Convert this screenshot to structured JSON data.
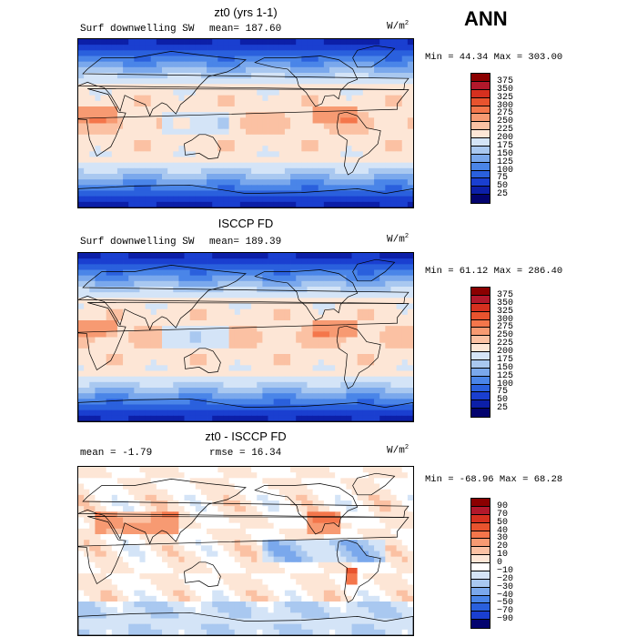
{
  "season": "ANN",
  "chart_data": [
    {
      "type": "heatmap",
      "title": "zt0 (yrs 1-1)",
      "left_label": "Surf downwelling SW",
      "stat_label": "mean= 187.60",
      "unit": "W/m",
      "unit_sup": "2",
      "minmax": "Min =  44.34 Max = 303.00",
      "levels": [
        "375",
        "350",
        "325",
        "300",
        "275",
        "250",
        "225",
        "200",
        "175",
        "150",
        "125",
        "100",
        "75",
        "50",
        "25"
      ],
      "colors": [
        "#8b0000",
        "#b2182b",
        "#d6301f",
        "#e8532e",
        "#f4764b",
        "#f79a72",
        "#fbc1a3",
        "#fde6d6",
        "#d4e4f7",
        "#a9c8f0",
        "#7aa8ec",
        "#4a85e8",
        "#2a60dd",
        "#1a3fd0",
        "#0c1fa8",
        "#03036e"
      ]
    },
    {
      "type": "heatmap",
      "title": "ISCCP FD",
      "left_label": "Surf downwelling SW",
      "stat_label": "mean= 189.39",
      "unit": "W/m",
      "unit_sup": "2",
      "minmax": "Min =  61.12 Max = 286.40",
      "levels": [
        "375",
        "350",
        "325",
        "300",
        "275",
        "250",
        "225",
        "200",
        "175",
        "150",
        "125",
        "100",
        "75",
        "50",
        "25"
      ],
      "colors": [
        "#8b0000",
        "#b2182b",
        "#d6301f",
        "#e8532e",
        "#f4764b",
        "#f79a72",
        "#fbc1a3",
        "#fde6d6",
        "#d4e4f7",
        "#a9c8f0",
        "#7aa8ec",
        "#4a85e8",
        "#2a60dd",
        "#1a3fd0",
        "#0c1fa8",
        "#03036e"
      ]
    },
    {
      "type": "heatmap",
      "title": "zt0 - ISCCP FD",
      "left_label": "mean =  -1.79",
      "stat_label": "rmse =  16.34",
      "unit": "W/m",
      "unit_sup": "2",
      "minmax": "Min = -68.96 Max =  68.28",
      "levels": [
        "90",
        "70",
        "50",
        "40",
        "30",
        "20",
        "10",
        "0",
        "−10",
        "−20",
        "−30",
        "−40",
        "−50",
        "−70",
        "−90"
      ],
      "colors": [
        "#8b0000",
        "#b2182b",
        "#d6301f",
        "#e8532e",
        "#f4764b",
        "#f79a72",
        "#fbc1a3",
        "#fde6d6",
        "#ffffff",
        "#d4e4f7",
        "#a9c8f0",
        "#7aa8ec",
        "#4a85e8",
        "#2a60dd",
        "#1a3fd0",
        "#03036e"
      ]
    }
  ]
}
